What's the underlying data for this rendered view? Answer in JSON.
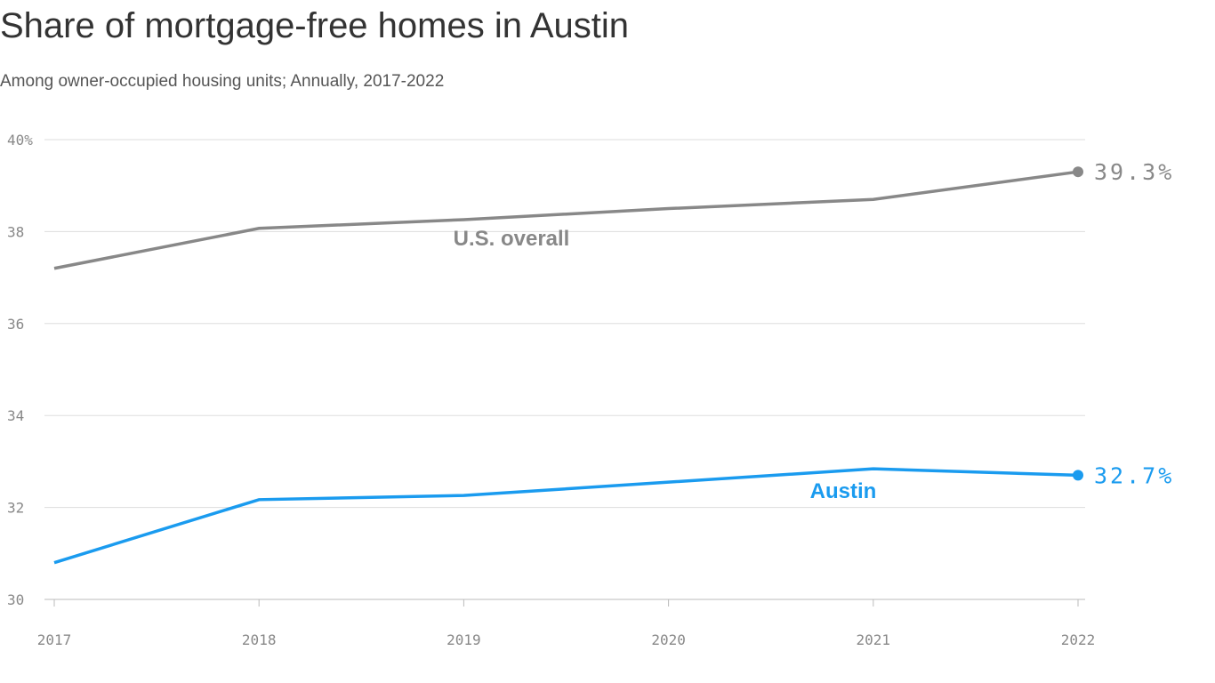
{
  "chart_data": {
    "type": "line",
    "title": "Share of mortgage-free homes in Austin",
    "subtitle": "Among owner-occupied housing units; Annually, 2017-2022",
    "x": [
      2017,
      2018,
      2019,
      2020,
      2021,
      2022
    ],
    "xlim": [
      2017,
      2022
    ],
    "xticks": [
      2017,
      2018,
      2019,
      2020,
      2021,
      2022
    ],
    "ylim": [
      30,
      40
    ],
    "yticks": [
      30,
      32,
      34,
      36,
      38,
      {
        "value": 40,
        "label": "40%"
      }
    ],
    "grid": true,
    "series": [
      {
        "name": "U.S. overall",
        "color": "#888888",
        "values": [
          37.2,
          38.07,
          38.26,
          38.5,
          38.7,
          39.3
        ],
        "end_label": "39.3%"
      },
      {
        "name": "Austin",
        "color": "#1a9bef",
        "values": [
          30.8,
          32.17,
          32.26,
          32.55,
          32.84,
          32.7
        ],
        "end_label": "32.7%"
      }
    ]
  }
}
